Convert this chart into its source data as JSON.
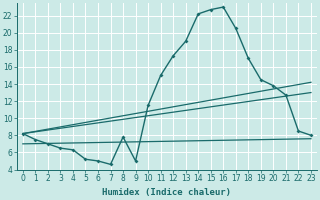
{
  "xlabel": "Humidex (Indice chaleur)",
  "xlim": [
    -0.5,
    23.5
  ],
  "ylim": [
    4,
    23.5
  ],
  "yticks": [
    4,
    6,
    8,
    10,
    12,
    14,
    16,
    18,
    20,
    22
  ],
  "xticks": [
    0,
    1,
    2,
    3,
    4,
    5,
    6,
    7,
    8,
    9,
    10,
    11,
    12,
    13,
    14,
    15,
    16,
    17,
    18,
    19,
    20,
    21,
    22,
    23
  ],
  "bg_color": "#cceae7",
  "line_color": "#1a6b6b",
  "grid_color": "#ffffff",
  "curve1_x": [
    0,
    1,
    2,
    3,
    4,
    5,
    6,
    7,
    8,
    9,
    10,
    11,
    12,
    13,
    14,
    15,
    16,
    17,
    18,
    19,
    20,
    21,
    22,
    23
  ],
  "curve1_y": [
    8.2,
    7.5,
    7.0,
    6.5,
    6.3,
    5.2,
    5.0,
    4.6,
    7.8,
    5.0,
    11.5,
    15.0,
    17.3,
    19.0,
    22.2,
    22.7,
    23.0,
    20.5,
    17.0,
    14.5,
    13.8,
    12.7,
    8.5,
    8.0
  ],
  "curve2_x": [
    0,
    23
  ],
  "curve2_y": [
    8.2,
    14.2
  ],
  "curve3_x": [
    0,
    23
  ],
  "curve3_y": [
    8.2,
    13.0
  ],
  "curve4_x": [
    0,
    23
  ],
  "curve4_y": [
    7.0,
    7.6
  ]
}
